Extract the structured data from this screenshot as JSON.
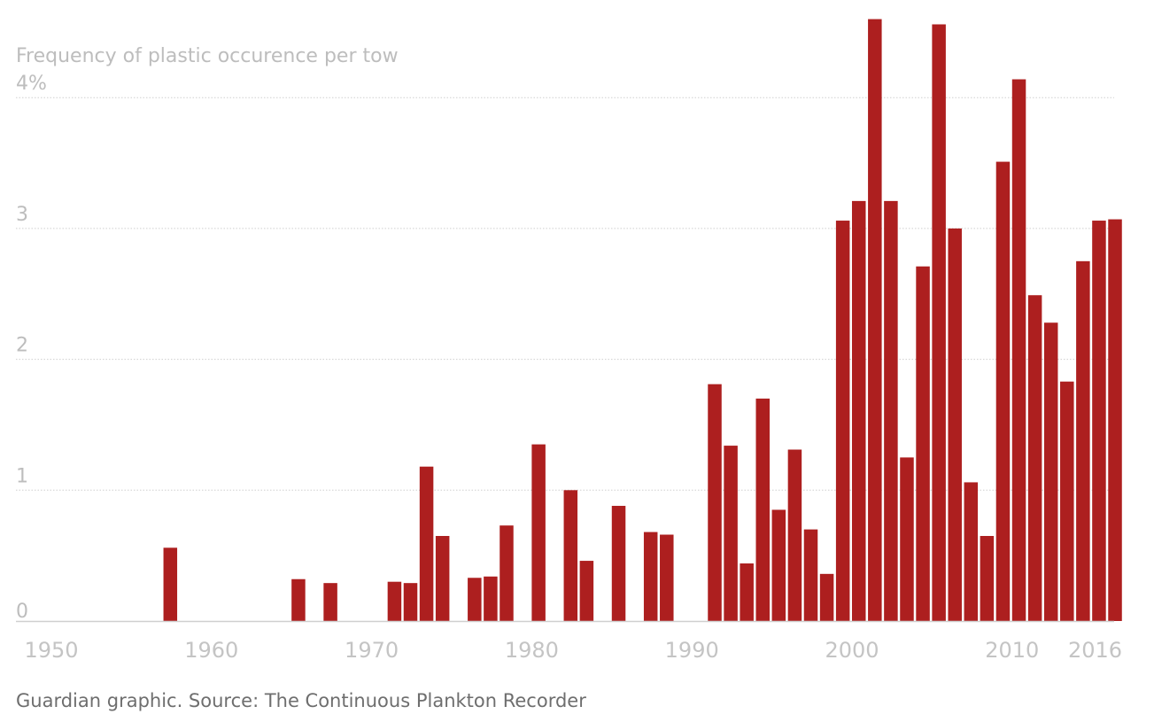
{
  "chart_data": {
    "type": "bar",
    "ylabel": "Frequency of plastic occurence per tow",
    "ylim": [
      0,
      4.6
    ],
    "grid": true,
    "y_ticks": [
      {
        "value": 0,
        "label": "0"
      },
      {
        "value": 1,
        "label": "1"
      },
      {
        "value": 2,
        "label": "2"
      },
      {
        "value": 3,
        "label": "3"
      },
      {
        "value": 4,
        "label": "4%"
      }
    ],
    "x_ticks": [
      {
        "value": 1950,
        "label": "1950"
      },
      {
        "value": 1960,
        "label": "1960"
      },
      {
        "value": 1970,
        "label": "1970"
      },
      {
        "value": 1980,
        "label": "1980"
      },
      {
        "value": 1990,
        "label": "1990"
      },
      {
        "value": 2000,
        "label": "2000"
      },
      {
        "value": 2010,
        "label": "2010"
      },
      {
        "value": 2016,
        "label": "2016"
      }
    ],
    "x_range": [
      1950,
      2016
    ],
    "bar_color": "#ad1f1f",
    "x": [
      1957,
      1965,
      1967,
      1971,
      1972,
      1973,
      1974,
      1976,
      1977,
      1978,
      1980,
      1982,
      1983,
      1985,
      1987,
      1988,
      1991,
      1992,
      1993,
      1994,
      1995,
      1996,
      1997,
      1998,
      1999,
      2000,
      2001,
      2002,
      2003,
      2004,
      2005,
      2006,
      2007,
      2008,
      2009,
      2010,
      2011,
      2012,
      2013,
      2014,
      2015,
      2016
    ],
    "values": [
      0.56,
      0.32,
      0.29,
      0.3,
      0.29,
      1.18,
      0.65,
      0.33,
      0.34,
      0.73,
      1.35,
      1.0,
      0.46,
      0.88,
      0.68,
      0.66,
      1.81,
      1.34,
      0.44,
      1.7,
      0.85,
      1.31,
      0.7,
      0.36,
      3.06,
      3.21,
      4.6,
      3.21,
      1.25,
      2.71,
      4.56,
      3.0,
      1.06,
      0.65,
      3.51,
      4.14,
      2.49,
      2.28,
      1.83,
      2.75,
      3.06,
      3.07
    ]
  },
  "source": "Guardian graphic. Source: The Continuous Plankton Recorder"
}
